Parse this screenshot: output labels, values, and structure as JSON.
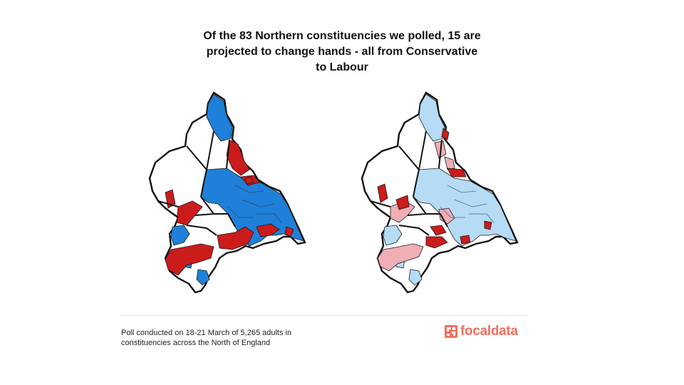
{
  "title": {
    "line1": "Of the 83 Northern constituencies we polled, 15 are",
    "line2": "projected to change hands - all from Conservative",
    "line3": "to Labour"
  },
  "footnote": {
    "line1": "Poll conducted on 18-21 March of 5,265 adults in",
    "line2": "constituencies across the North of England"
  },
  "logo": {
    "text": "focaldata",
    "color": "#f26f5e"
  },
  "colors": {
    "conservative": "#1f80d9",
    "labour": "#cc1b1b",
    "conservative_light": "#b5dbf5",
    "labour_light": "#f0aeb5",
    "not_polled": "#ffffff",
    "outline": "#111111"
  },
  "maps": [
    {
      "id": "current",
      "style": "saturated"
    },
    {
      "id": "projected",
      "style": "light-with-gains-highlighted"
    }
  ]
}
